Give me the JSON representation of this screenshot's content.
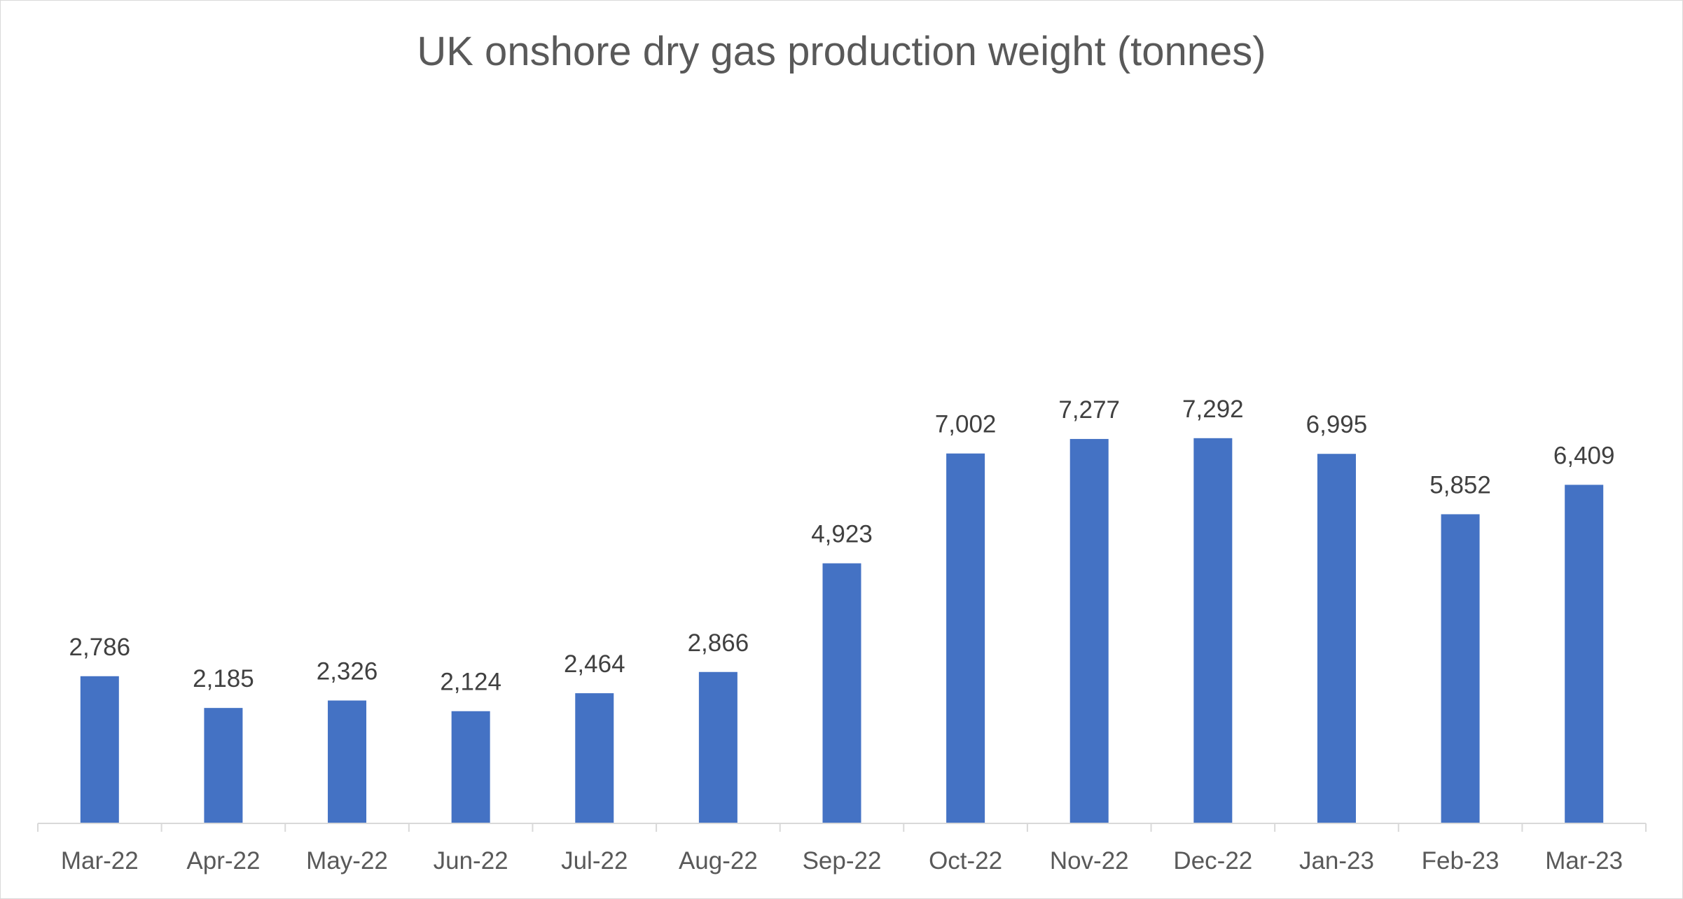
{
  "chart_data": {
    "type": "bar",
    "title": "UK onshore dry gas production weight (tonnes)",
    "xlabel": "",
    "ylabel": "",
    "categories": [
      "Mar-22",
      "Apr-22",
      "May-22",
      "Jun-22",
      "Jul-22",
      "Aug-22",
      "Sep-22",
      "Oct-22",
      "Nov-22",
      "Dec-22",
      "Jan-23",
      "Feb-23",
      "Mar-23"
    ],
    "values": [
      2786,
      2185,
      2326,
      2124,
      2464,
      2866,
      4923,
      7002,
      7277,
      7292,
      6995,
      5852,
      6409
    ],
    "data_labels": [
      "2,786",
      "2,185",
      "2,326",
      "2,124",
      "2,464",
      "2,866",
      "4,923",
      "7,002",
      "7,277",
      "7,292",
      "6,995",
      "5,852",
      "6,409"
    ],
    "ylim": [
      0,
      10200
    ],
    "grid": false,
    "legend": "none",
    "bar_color": "#4472c4",
    "axis_color": "#d9d9d9"
  }
}
